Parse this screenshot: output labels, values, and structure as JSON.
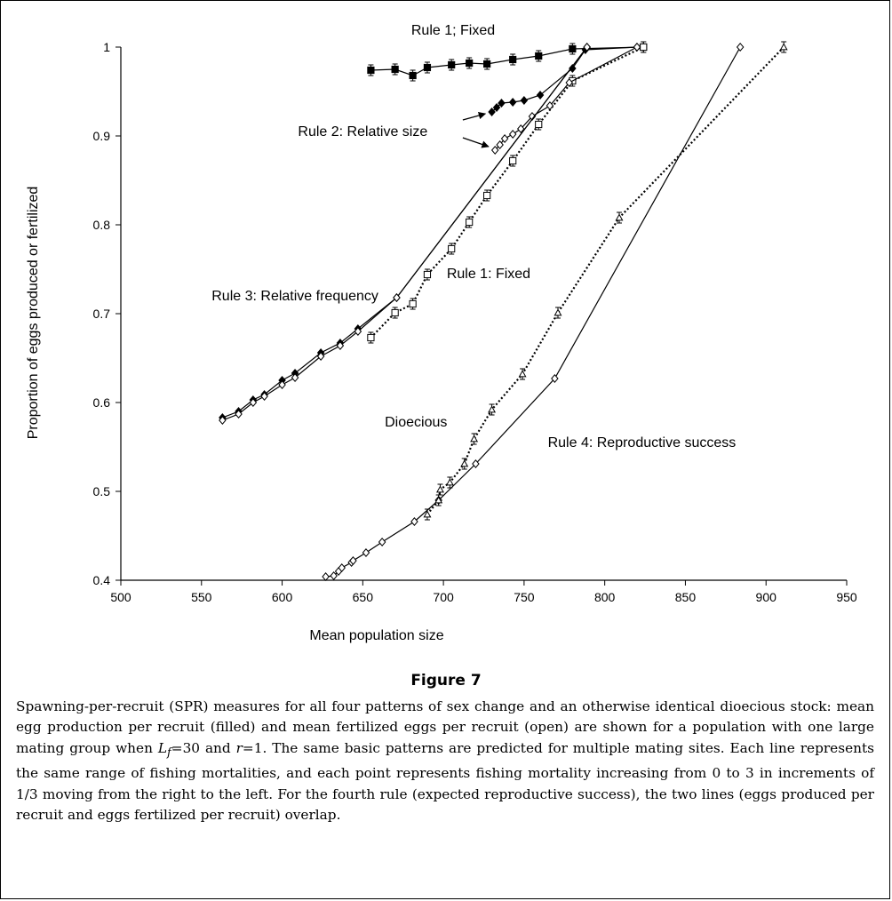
{
  "figure": {
    "title": "Figure 7",
    "caption_parts": [
      "Spawning-per-recruit (SPR) measures for all four patterns of sex change and an otherwise identical dioecious stock: mean egg production per recruit (filled) and mean fertilized eggs per recruit (open) are shown for a population with one large mating group when ",
      "L",
      "f",
      "=30 and ",
      "r",
      "=1. The same basic patterns are predicted for multiple mating sites. Each line represents the same range of fishing mortalities, and each point represents fishing mortality increasing from 0 to 3 in increments of 1/3 moving from the right to the left. For the fourth rule (expected reproductive success), the two lines (eggs produced per recruit and eggs fertilized per recruit) overlap."
    ]
  },
  "chart_data": {
    "type": "line",
    "xlabel": "Mean population size",
    "ylabel": "Proportion of eggs produced or fertilized",
    "xlim": [
      500,
      950
    ],
    "ylim": [
      0.4,
      1.0
    ],
    "xticks": [
      500,
      550,
      600,
      650,
      700,
      750,
      800,
      850,
      900,
      950
    ],
    "yticks": [
      0.4,
      0.5,
      0.6,
      0.7,
      0.8,
      0.9,
      1.0
    ],
    "ytick_labels": [
      "0.4",
      "0.5",
      "0.6",
      "0.7",
      "0.8",
      "0.9",
      "1"
    ],
    "grid": false,
    "annotations": [
      {
        "text": "Rule 1; Fixed",
        "x": 706,
        "y": 1.014
      },
      {
        "text": "Rule 2: Relative size",
        "x": 650,
        "y": 0.9
      },
      {
        "text": "Rule 3: Relative frequency",
        "x": 608,
        "y": 0.715
      },
      {
        "text": "Rule 1: Fixed",
        "x": 728,
        "y": 0.74
      },
      {
        "text": "Dioecious",
        "x": 683,
        "y": 0.573
      },
      {
        "text": "Rule 4: Reproductive success",
        "x": 823,
        "y": 0.55
      }
    ],
    "series": [
      {
        "style": "rule1-filled",
        "marker": "square-filled",
        "line": "solid",
        "errorbars": true,
        "x": [
          655,
          670,
          681,
          690,
          705,
          716,
          727,
          743,
          759,
          780,
          824
        ],
        "y": [
          0.974,
          0.975,
          0.968,
          0.977,
          0.98,
          0.982,
          0.981,
          0.986,
          0.99,
          0.998,
          1.0
        ]
      },
      {
        "style": "rule1-open",
        "marker": "square-open",
        "line": "dotted",
        "errorbars": true,
        "x": [
          655,
          670,
          681,
          690,
          705,
          716,
          727,
          743,
          759,
          780,
          824
        ],
        "y": [
          0.673,
          0.701,
          0.711,
          0.744,
          0.773,
          0.803,
          0.833,
          0.872,
          0.913,
          0.962,
          1.0
        ]
      },
      {
        "style": "rule2-filled",
        "marker": "diamond-filled",
        "line": "solid",
        "errorbars": false,
        "x": [
          730,
          733,
          736,
          743,
          750,
          760,
          780,
          788,
          820
        ],
        "y": [
          0.927,
          0.932,
          0.937,
          0.938,
          0.94,
          0.946,
          0.976,
          0.997,
          1.0
        ]
      },
      {
        "style": "rule2-open",
        "marker": "diamond-open",
        "line": "solid",
        "errorbars": false,
        "x": [
          732,
          735,
          738,
          743,
          748,
          755,
          766,
          778,
          820
        ],
        "y": [
          0.884,
          0.89,
          0.897,
          0.902,
          0.908,
          0.922,
          0.934,
          0.96,
          1.0
        ]
      },
      {
        "style": "rule3-filled",
        "marker": "diamond-filled",
        "line": "solid",
        "errorbars": false,
        "x": [
          563,
          573,
          582,
          589,
          600,
          608,
          624,
          636,
          647,
          671,
          789
        ],
        "y": [
          0.583,
          0.59,
          0.603,
          0.609,
          0.625,
          0.633,
          0.656,
          0.667,
          0.683,
          0.718,
          1.0
        ]
      },
      {
        "style": "rule3-open",
        "marker": "diamond-open",
        "line": "solid",
        "errorbars": false,
        "x": [
          563,
          573,
          582,
          589,
          600,
          608,
          624,
          636,
          647,
          671,
          789
        ],
        "y": [
          0.58,
          0.587,
          0.6,
          0.607,
          0.62,
          0.628,
          0.652,
          0.664,
          0.68,
          0.718,
          1.0
        ]
      },
      {
        "style": "rule4",
        "marker": "diamond-open",
        "line": "solid",
        "errorbars": false,
        "x": [
          627,
          632,
          635,
          637,
          643,
          644,
          652,
          662,
          682,
          697,
          720,
          769,
          884
        ],
        "y": [
          0.404,
          0.405,
          0.41,
          0.414,
          0.42,
          0.422,
          0.431,
          0.443,
          0.466,
          0.49,
          0.531,
          0.627,
          1.0
        ]
      },
      {
        "style": "dioecious",
        "marker": "triangle-open",
        "line": "dotted",
        "errorbars": true,
        "x": [
          690,
          697,
          698,
          704,
          713,
          719,
          730,
          749,
          771,
          809,
          911
        ],
        "y": [
          0.474,
          0.49,
          0.502,
          0.51,
          0.531,
          0.559,
          0.592,
          0.632,
          0.701,
          0.808,
          1.0
        ]
      }
    ]
  }
}
